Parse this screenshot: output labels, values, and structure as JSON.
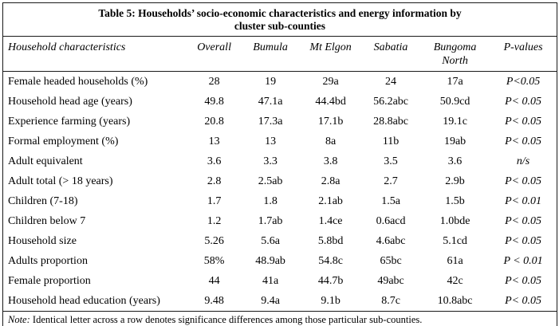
{
  "table": {
    "title_line1": "Table 5: Households’ socio-economic characteristics and energy information by",
    "title_line2": "cluster sub-counties",
    "columns": [
      "Household characteristics",
      "Overall",
      "Bumula",
      "Mt Elgon",
      "Sabatia",
      "Bungoma North",
      "P-values"
    ],
    "rows": [
      [
        "Female headed households (%)",
        "28",
        "19",
        "29a",
        "24",
        "17a",
        "P<0.05"
      ],
      [
        "Household head age (years)",
        "49.8",
        "47.1a",
        "44.4bd",
        "56.2abc",
        "50.9cd",
        "P< 0.05"
      ],
      [
        "Experience farming (years)",
        "20.8",
        "17.3a",
        "17.1b",
        "28.8abc",
        "19.1c",
        "P< 0.05"
      ],
      [
        "Formal employment (%)",
        "13",
        "13",
        "8a",
        "11b",
        "19ab",
        "P< 0.05"
      ],
      [
        "Adult equivalent",
        "3.6",
        "3.3",
        "3.8",
        "3.5",
        "3.6",
        "n/s"
      ],
      [
        "Adult total (> 18 years)",
        "2.8",
        "2.5ab",
        "2.8a",
        "2.7",
        "2.9b",
        "P< 0.05"
      ],
      [
        "Children (7-18)",
        "1.7",
        "1.8",
        "2.1ab",
        "1.5a",
        "1.5b",
        "P< 0.01"
      ],
      [
        "Children below 7",
        "1.2",
        "1.7ab",
        "1.4ce",
        "0.6acd",
        "1.0bde",
        "P< 0.05"
      ],
      [
        "Household size",
        "5.26",
        "5.6a",
        "5.8bd",
        "4.6abc",
        "5.1cd",
        "P< 0.05"
      ],
      [
        "Adults proportion",
        "58%",
        "48.9ab",
        "54.8c",
        "65bc",
        "61a",
        "P < 0.01"
      ],
      [
        "Female proportion",
        "44",
        "41a",
        "44.7b",
        "49abc",
        "42c",
        "P< 0.05"
      ],
      [
        "Household head education (years)",
        "9.48",
        "9.4a",
        "9.1b",
        "8.7c",
        "10.8abc",
        "P< 0.05"
      ]
    ],
    "note_label": "Note:",
    "note_text": " Identical letter across a row denotes significance differences among those particular sub-counties."
  },
  "colors": {
    "text": "#000000",
    "border": "#1a1a1a",
    "background": "#ffffff"
  }
}
